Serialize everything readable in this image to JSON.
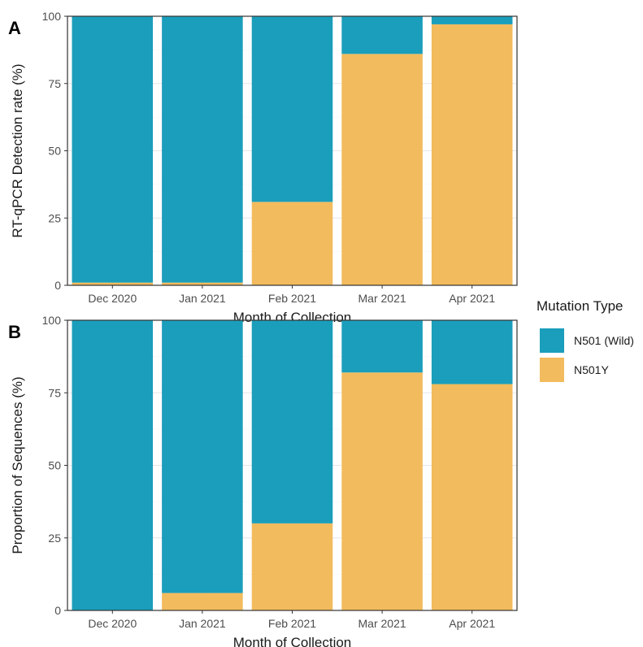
{
  "chart_data": [
    {
      "panel_tag": "A",
      "type": "bar",
      "stacked": true,
      "categories": [
        "Dec 2020",
        "Jan 2021",
        "Feb 2021",
        "Mar 2021",
        "Apr 2021"
      ],
      "series": [
        {
          "name": "N501Y",
          "values": [
            1,
            1,
            31,
            86,
            97
          ]
        },
        {
          "name": "N501 (Wild)",
          "values": [
            99,
            99,
            69,
            14,
            3
          ]
        }
      ],
      "xlabel": "Month of Collection",
      "ylabel": "RT-qPCR Detection rate (%)",
      "ylim": [
        0,
        100
      ],
      "yticks": [
        0,
        25,
        50,
        75,
        100
      ],
      "grid": true
    },
    {
      "panel_tag": "B",
      "type": "bar",
      "stacked": true,
      "categories": [
        "Dec 2020",
        "Jan 2021",
        "Feb 2021",
        "Mar 2021",
        "Apr 2021"
      ],
      "series": [
        {
          "name": "N501Y",
          "values": [
            0,
            6,
            30,
            82,
            78
          ]
        },
        {
          "name": "N501 (Wild)",
          "values": [
            100,
            94,
            70,
            18,
            22
          ]
        }
      ],
      "xlabel": "Month of Collection",
      "ylabel": "Proportion of Sequences (%)",
      "ylim": [
        0,
        100
      ],
      "yticks": [
        0,
        25,
        50,
        75,
        100
      ],
      "grid": true
    }
  ],
  "legend": {
    "title": "Mutation Type",
    "placement": "right",
    "items": [
      {
        "label": "N501 (Wild)",
        "color": "#1b9ebb"
      },
      {
        "label": "N501Y",
        "color": "#f2bb5e"
      }
    ]
  },
  "colors": {
    "N501 (Wild)": "#1b9ebb",
    "N501Y": "#f2bb5e"
  }
}
